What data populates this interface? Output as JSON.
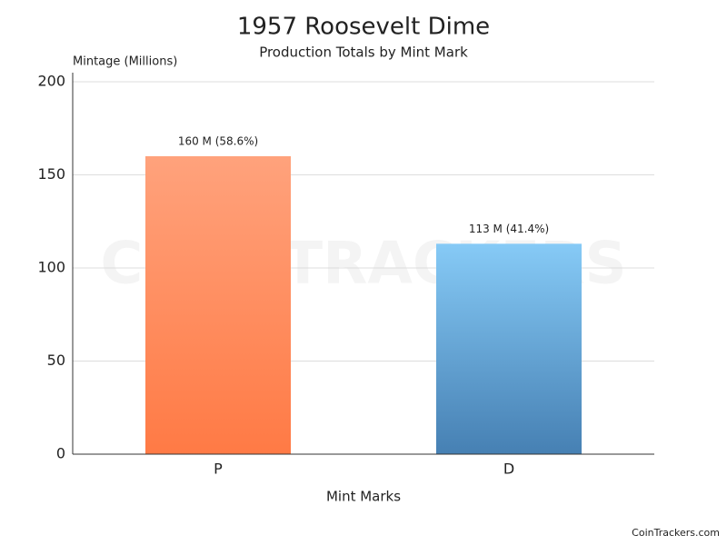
{
  "chart_data": {
    "type": "bar",
    "title": "1957 Roosevelt Dime",
    "subtitle": "Production Totals by Mint Mark",
    "y_label": "Mintage (Millions)",
    "x_label": "Mint Marks",
    "categories": [
      "P",
      "D"
    ],
    "values": [
      160,
      113
    ],
    "value_labels": [
      "160 M (58.6%)",
      "113 M (41.4%)"
    ],
    "colors": [
      [
        "#ffa27c",
        "#ff7a45"
      ],
      [
        "#86caf6",
        "#4680b3"
      ]
    ],
    "ylim": [
      0,
      200
    ],
    "yticks": [
      0,
      50,
      100,
      150,
      200
    ],
    "grid": true,
    "watermark": "COIN TRACKERS",
    "footer": "CoinTrackers.com"
  }
}
